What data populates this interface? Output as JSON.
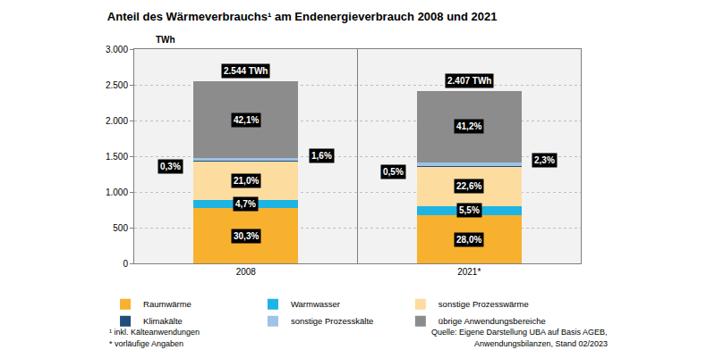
{
  "chart_data": {
    "type": "bar",
    "title": "Anteil des Wärmeverbrauchs¹ am Endenergieverbrauch 2008 und 2021",
    "ylabel": "TWh",
    "categories": [
      "2008",
      "2021*"
    ],
    "stacked": true,
    "grid": true,
    "legend": "bottom",
    "ylim": [
      0,
      3000
    ],
    "yticks": [
      0,
      500,
      {
        "value": 1000,
        "label": "1.000"
      },
      {
        "value": 1500,
        "label": "1.500"
      },
      {
        "value": 2000,
        "label": "2.000"
      },
      {
        "value": 2500,
        "label": "2.500"
      },
      {
        "value": 3000,
        "label": "3.000"
      }
    ],
    "series": [
      {
        "name": "Raumwärme",
        "color": "#f7b12e",
        "values": [
          771,
          674
        ],
        "shares": [
          30.3,
          28.0
        ],
        "share_labels": [
          "30,3%",
          "28,0%"
        ]
      },
      {
        "name": "Warmwasser",
        "color": "#1db4e3",
        "values": [
          120,
          132
        ],
        "shares": [
          4.7,
          5.5
        ],
        "share_labels": [
          "4,7%",
          "5,5%"
        ]
      },
      {
        "name": "sonstige Prozesswärme",
        "color": "#fddca0",
        "values": [
          534,
          544
        ],
        "shares": [
          21.0,
          22.6
        ],
        "share_labels": [
          "21,0%",
          "22,6%"
        ]
      },
      {
        "name": "Klimakälte",
        "color": "#1f4e79",
        "values": [
          8,
          12
        ],
        "shares": [
          0.3,
          0.5
        ],
        "share_labels": [
          "0,3%",
          "0,5%"
        ]
      },
      {
        "name": "sonstige Prozesskälte",
        "color": "#9dc3e6",
        "values": [
          41,
          55
        ],
        "shares": [
          1.6,
          2.3
        ],
        "share_labels": [
          "1,6%",
          "2,3%"
        ]
      },
      {
        "name": "übrige Anwendungsbereiche",
        "color": "#8c8c8c",
        "values": [
          1071,
          992
        ],
        "shares": [
          42.1,
          41.2
        ],
        "share_labels": [
          "42,1%",
          "41,2%"
        ]
      }
    ],
    "totals": [
      2544,
      2407
    ],
    "total_labels": [
      "2.544 TWh",
      "2.407 TWh"
    ],
    "footnotes": [
      "¹ inkl. Kälteanwendungen",
      "* vorläufige Angaben"
    ],
    "source": [
      "Quelle: Eigene Darstellung UBA auf Basis AGEB,",
      "Anwendungsbilanzen, Stand 02/2023"
    ]
  }
}
